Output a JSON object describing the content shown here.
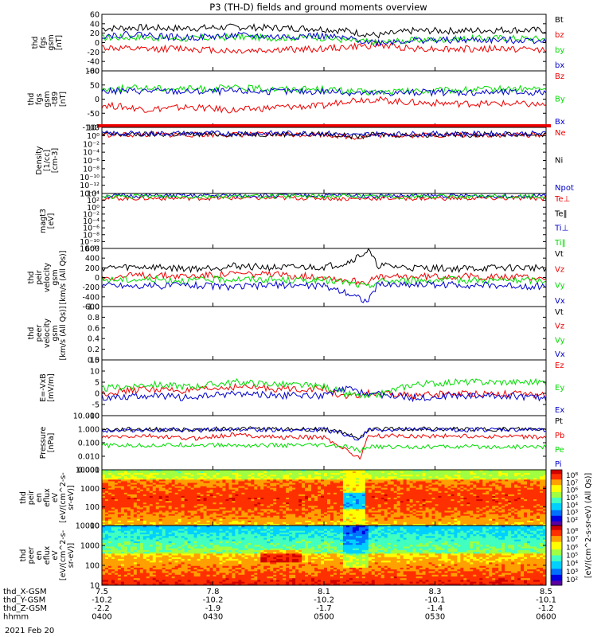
{
  "title": "P3 (TH-D) fields and ground moments overview",
  "date_label": "2021 Feb 20",
  "colors": {
    "black": "#000000",
    "red": "#ee0000",
    "green": "#00dd00",
    "blue": "#0000cc",
    "orange": "#ff7f00",
    "cyan": "#00cccc"
  },
  "chart_data": [
    {
      "type": "line",
      "panel": "fgs-gsm",
      "ylabel": [
        "thd",
        "fgs",
        "gsm",
        "[nT]"
      ],
      "ylim": [
        -60,
        60
      ],
      "ticks": [
        "60",
        "40",
        "20",
        "0",
        "-20",
        "-40",
        "-60"
      ],
      "legend": [
        {
          "name": "Bt",
          "color": "#000000"
        },
        {
          "name": "bz",
          "color": "#ee0000"
        },
        {
          "name": "by",
          "color": "#00dd00"
        },
        {
          "name": "bx",
          "color": "#0000cc"
        }
      ],
      "series": [
        {
          "name": "Bt",
          "color": "#000000",
          "x": [
            0,
            8,
            18,
            30,
            40,
            48,
            55,
            58,
            62,
            70,
            80,
            90,
            100
          ],
          "values": [
            30,
            32,
            30,
            33,
            31,
            30,
            25,
            20,
            15,
            25,
            25,
            27,
            26
          ]
        },
        {
          "name": "bz",
          "color": "#ee0000",
          "x": [
            0,
            8,
            18,
            30,
            40,
            48,
            55,
            58,
            62,
            70,
            80,
            90,
            100
          ],
          "values": [
            -10,
            -15,
            -12,
            -18,
            -15,
            -14,
            -10,
            -8,
            -5,
            -12,
            -14,
            -13,
            -15
          ]
        },
        {
          "name": "by",
          "color": "#00dd00",
          "x": [
            0,
            8,
            18,
            30,
            40,
            48,
            55,
            58,
            62,
            70,
            80,
            90,
            100
          ],
          "values": [
            10,
            12,
            8,
            12,
            10,
            12,
            5,
            3,
            0,
            5,
            8,
            10,
            8
          ]
        },
        {
          "name": "bx",
          "color": "#0000cc",
          "x": [
            0,
            8,
            18,
            30,
            40,
            48,
            55,
            58,
            62,
            70,
            80,
            90,
            100
          ],
          "values": [
            15,
            18,
            10,
            15,
            12,
            15,
            8,
            5,
            0,
            5,
            5,
            5,
            5
          ]
        }
      ]
    },
    {
      "type": "line",
      "panel": "fgs-gsm-t89",
      "ylabel": [
        "thd",
        "fgs",
        "gsm",
        "-t89",
        "[nT]"
      ],
      "ylim": [
        -150,
        100
      ],
      "ticks": [
        "100",
        "50",
        "0",
        "-50",
        "-100"
      ],
      "legend": [
        {
          "name": "Bz",
          "color": "#ee0000"
        },
        {
          "name": "By",
          "color": "#00dd00"
        },
        {
          "name": "Bx",
          "color": "#0000cc"
        }
      ],
      "series": [
        {
          "name": "Bz",
          "color": "#ee0000",
          "x": [
            0,
            10,
            20,
            30,
            40,
            50,
            55,
            60,
            70,
            80,
            90,
            100
          ],
          "values": [
            -50,
            -70,
            -60,
            -75,
            -60,
            -55,
            -30,
            -25,
            -40,
            -45,
            -45,
            -50
          ]
        },
        {
          "name": "By",
          "color": "#00dd00",
          "x": [
            0,
            10,
            20,
            30,
            40,
            50,
            55,
            60,
            70,
            80,
            90,
            100
          ],
          "values": [
            20,
            25,
            20,
            25,
            20,
            20,
            10,
            5,
            10,
            15,
            20,
            20
          ]
        },
        {
          "name": "Bx",
          "color": "#0000cc",
          "x": [
            0,
            10,
            20,
            30,
            40,
            50,
            55,
            60,
            70,
            80,
            90,
            100
          ],
          "values": [
            10,
            12,
            8,
            10,
            8,
            10,
            5,
            0,
            5,
            5,
            5,
            5
          ]
        }
      ]
    },
    {
      "type": "line",
      "panel": "density",
      "ylabel": [
        "Density",
        "[1/cc]",
        "[cm-3]"
      ],
      "ylim_log": [
        -14,
        2
      ],
      "ticks": [
        "10²",
        "10⁰",
        "10⁻²",
        "10⁻⁴",
        "10⁻⁶",
        "10⁻⁸",
        "10⁻¹⁰",
        "10⁻¹²",
        "10⁻¹⁴"
      ],
      "legend": [
        {
          "name": "Ne",
          "color": "#ee0000"
        },
        {
          "name": "Ni",
          "color": "#000000"
        },
        {
          "name": "Npot",
          "color": "#0000cc"
        }
      ],
      "series": [
        {
          "name": "Ne",
          "color": "#ee0000",
          "x": [
            0,
            50,
            55,
            58,
            60,
            100
          ],
          "values": [
            0.2,
            0.3,
            -0.2,
            -0.4,
            0.1,
            0.2
          ]
        },
        {
          "name": "Ni",
          "color": "#000000",
          "x": [
            0,
            50,
            55,
            58,
            60,
            100
          ],
          "values": [
            0.3,
            0.4,
            0,
            -0.3,
            0.2,
            0.3
          ]
        },
        {
          "name": "Npot",
          "color": "#0000cc",
          "x": [
            0,
            50,
            55,
            58,
            60,
            100
          ],
          "values": [
            0.5,
            0.6,
            0.2,
            0,
            0.4,
            0.5
          ]
        }
      ]
    },
    {
      "type": "line",
      "panel": "temperature",
      "ylabel": [
        "magt3",
        "[eV]"
      ],
      "ylim_log": [
        -12,
        4
      ],
      "ticks": [
        "10⁴",
        "10²",
        "10⁰",
        "10⁻²",
        "10⁻⁴",
        "10⁻⁶",
        "10⁻⁸",
        "10⁻¹⁰",
        "10⁻¹²"
      ],
      "legend": [
        {
          "name": "Te⊥",
          "color": "#ee0000"
        },
        {
          "name": "Te‖",
          "color": "#000000"
        },
        {
          "name": "Ti⊥",
          "color": "#0000cc"
        },
        {
          "name": "Ti‖",
          "color": "#00dd00"
        }
      ],
      "series": [
        {
          "name": "Te⊥",
          "color": "#ee0000",
          "x": [
            0,
            50,
            55,
            60,
            100
          ],
          "values": [
            2.6,
            2.7,
            2.4,
            2.6,
            2.6
          ]
        },
        {
          "name": "Ti⊥",
          "color": "#0000cc",
          "x": [
            0,
            50,
            55,
            60,
            100
          ],
          "values": [
            3.3,
            3.4,
            3.5,
            3.3,
            3.3
          ]
        },
        {
          "name": "Ti‖",
          "color": "#00dd00",
          "x": [
            0,
            50,
            55,
            60,
            100
          ],
          "values": [
            3.1,
            3.2,
            3.3,
            3.1,
            3.1
          ]
        }
      ]
    },
    {
      "type": "line",
      "panel": "peir-velocity",
      "ylabel": [
        "thd",
        "peir",
        "velocity",
        "gsm",
        "[km/s (All Qs)]"
      ],
      "ylim": [
        -600,
        600
      ],
      "ticks": [
        "600",
        "400",
        "200",
        "0",
        "-200",
        "-400",
        "-600"
      ],
      "legend": [
        {
          "name": "Vt",
          "color": "#000000"
        },
        {
          "name": "Vz",
          "color": "#ee0000"
        },
        {
          "name": "Vy",
          "color": "#00dd00"
        },
        {
          "name": "Vx",
          "color": "#0000cc"
        }
      ],
      "series": [
        {
          "name": "Vt",
          "color": "#000000",
          "x": [
            0,
            10,
            20,
            30,
            40,
            50,
            55,
            60,
            62,
            70,
            80,
            90,
            100
          ],
          "values": [
            200,
            220,
            180,
            240,
            200,
            220,
            300,
            550,
            250,
            200,
            180,
            200,
            200
          ]
        },
        {
          "name": "Vz",
          "color": "#ee0000",
          "x": [
            0,
            10,
            20,
            30,
            40,
            50,
            55,
            60,
            62,
            70,
            80,
            90,
            100
          ],
          "values": [
            0,
            50,
            30,
            80,
            50,
            20,
            -50,
            -100,
            0,
            20,
            30,
            10,
            0
          ]
        },
        {
          "name": "Vy",
          "color": "#00dd00",
          "x": [
            0,
            10,
            20,
            30,
            40,
            50,
            55,
            60,
            62,
            70,
            80,
            90,
            100
          ],
          "values": [
            -50,
            -40,
            -60,
            -30,
            -50,
            -60,
            -100,
            -200,
            -80,
            -60,
            -50,
            -60,
            -60
          ]
        },
        {
          "name": "Vx",
          "color": "#0000cc",
          "x": [
            0,
            10,
            20,
            30,
            40,
            50,
            55,
            60,
            62,
            70,
            80,
            90,
            100
          ],
          "values": [
            -150,
            -180,
            -150,
            -200,
            -150,
            -180,
            -300,
            -500,
            -150,
            -140,
            -150,
            -170,
            -180
          ]
        }
      ]
    },
    {
      "type": "line",
      "panel": "peer-velocity",
      "ylabel": [
        "thd",
        "peer",
        "velocity",
        "gsm",
        "[km/s (All Qs)]"
      ],
      "ylim": [
        0,
        1
      ],
      "ticks": [
        "1.0",
        "0.8",
        "0.6",
        "0.4",
        "0.2",
        "0.0"
      ],
      "legend": [
        {
          "name": "Vt",
          "color": "#000000"
        },
        {
          "name": "Vz",
          "color": "#ee0000"
        },
        {
          "name": "Vy",
          "color": "#00dd00"
        },
        {
          "name": "Vx",
          "color": "#0000cc"
        }
      ],
      "series": []
    },
    {
      "type": "line",
      "panel": "efield",
      "ylabel": [
        "E=-VxB",
        "[mV/m]"
      ],
      "ylim": [
        -10,
        15
      ],
      "ticks": [
        "15",
        "10",
        "5",
        "0",
        "-5",
        "-10"
      ],
      "legend": [
        {
          "name": "Ez",
          "color": "#ee0000"
        },
        {
          "name": "Ey",
          "color": "#00dd00"
        },
        {
          "name": "Ex",
          "color": "#0000cc"
        }
      ],
      "series": [
        {
          "name": "Ez",
          "color": "#ee0000",
          "x": [
            0,
            10,
            20,
            30,
            40,
            50,
            55,
            60,
            70,
            80,
            90,
            100
          ],
          "values": [
            0,
            2,
            1,
            3,
            2,
            2,
            -2,
            0,
            -1,
            0,
            0,
            -1
          ]
        },
        {
          "name": "Ey",
          "color": "#00dd00",
          "x": [
            0,
            10,
            20,
            30,
            40,
            50,
            55,
            60,
            70,
            80,
            90,
            100
          ],
          "values": [
            2,
            4,
            3,
            5,
            4,
            3,
            0,
            -2,
            4,
            5,
            5,
            5
          ]
        },
        {
          "name": "Ex",
          "color": "#0000cc",
          "x": [
            0,
            10,
            20,
            30,
            40,
            50,
            55,
            60,
            70,
            80,
            90,
            100
          ],
          "values": [
            -2,
            -1,
            -2,
            0,
            -1,
            -1,
            2,
            0,
            -2,
            -1,
            -1,
            -2
          ]
        }
      ]
    },
    {
      "type": "line",
      "panel": "pressure",
      "ylabel": [
        "Pressure",
        "[nPa]"
      ],
      "ylim_log": [
        -3,
        1
      ],
      "ticks": [
        "10.000",
        "1.000",
        "0.100",
        "0.010",
        "0.001"
      ],
      "legend": [
        {
          "name": "Pt",
          "color": "#000000"
        },
        {
          "name": "Pb",
          "color": "#ee0000"
        },
        {
          "name": "Pe",
          "color": "#00dd00"
        },
        {
          "name": "Pi",
          "color": "#0000cc"
        }
      ],
      "series": [
        {
          "name": "Pt",
          "color": "#000000",
          "x": [
            0,
            10,
            20,
            30,
            40,
            50,
            55,
            58,
            60,
            70,
            80,
            90,
            100
          ],
          "values": [
            -0.05,
            0,
            -0.05,
            0.05,
            0,
            0,
            -0.3,
            -0.7,
            0,
            0,
            0,
            0,
            0
          ]
        },
        {
          "name": "Pb",
          "color": "#ee0000",
          "x": [
            0,
            10,
            20,
            30,
            40,
            50,
            55,
            58,
            60,
            70,
            80,
            90,
            100
          ],
          "values": [
            -0.6,
            -0.5,
            -0.7,
            -0.4,
            -0.6,
            -0.6,
            -1.5,
            -2.2,
            -0.5,
            -0.5,
            -0.5,
            -0.55,
            -0.6
          ]
        },
        {
          "name": "Pe",
          "color": "#00dd00",
          "x": [
            0,
            10,
            20,
            30,
            40,
            50,
            55,
            58,
            60,
            70,
            80,
            90,
            100
          ],
          "values": [
            -1.2,
            -1.2,
            -1.15,
            -1.2,
            -1.2,
            -1.2,
            -1.3,
            -1.6,
            -1.3,
            -1.3,
            -1.3,
            -1.3,
            -1.3
          ]
        },
        {
          "name": "Pi",
          "color": "#0000cc",
          "x": [
            0,
            10,
            20,
            30,
            40,
            50,
            55,
            58,
            60,
            70,
            80,
            90,
            100
          ],
          "values": [
            -0.1,
            -0.05,
            -0.1,
            0,
            -0.05,
            -0.05,
            -0.4,
            -0.8,
            -0.05,
            -0.05,
            -0.05,
            -0.05,
            -0.05
          ]
        }
      ]
    },
    {
      "type": "heatmap",
      "panel": "peir-spectrogram",
      "ylabel": [
        "thd",
        "peir",
        "en",
        "eflux",
        "eV",
        "[eV/(cm^2-s-",
        "sr-eV)]"
      ],
      "ylim_log": [
        1,
        4.3
      ],
      "ticks": [
        "10000",
        "1000",
        "100",
        "10"
      ],
      "colorbar": {
        "label": "[eV/(cm^2-s-sr-eV) (All Qs)]",
        "ticks": [
          "10⁸",
          "10⁷",
          "10⁶",
          "10⁵",
          "10⁴",
          "10³",
          "10²"
        ]
      }
    },
    {
      "type": "heatmap",
      "panel": "peer-spectrogram",
      "ylabel": [
        "thd",
        "peer",
        "en",
        "eflux",
        "eV",
        "[eV/(cm^2-s-",
        "sr-eV)]"
      ],
      "ylim_log": [
        1,
        4.3
      ],
      "ticks": [
        "10000",
        "1000",
        "100",
        "10"
      ],
      "colorbar": {
        "label": "[eV/(cm^2-s-sr-eV) (All Qs)]",
        "ticks": [
          "10⁸",
          "10⁷",
          "10⁶",
          "10⁵",
          "10⁴",
          "10³",
          "10²"
        ]
      }
    }
  ],
  "xaxis": {
    "rows": [
      {
        "label": "thd_X-GSM",
        "values": [
          "7.5",
          "7.8",
          "8.1",
          "8.3",
          "8.5"
        ]
      },
      {
        "label": "thd_Y-GSM",
        "values": [
          "-10.2",
          "-10.2",
          "-10.2",
          "-10.1",
          "-10.1"
        ]
      },
      {
        "label": "thd_Z-GSM",
        "values": [
          "-2.2",
          "-1.9",
          "-1.7",
          "-1.4",
          "-1.2"
        ]
      },
      {
        "label": "hhmm",
        "values": [
          "0400",
          "0430",
          "0500",
          "0530",
          "0600"
        ]
      }
    ]
  }
}
